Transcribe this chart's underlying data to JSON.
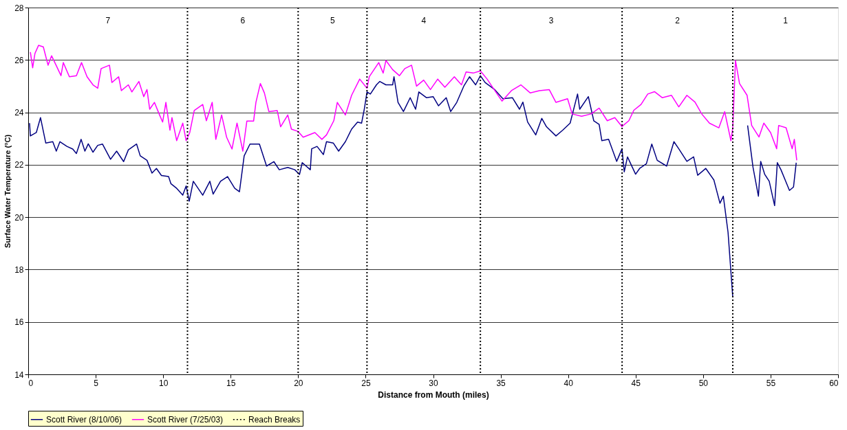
{
  "chart_data": {
    "type": "line",
    "xlabel": "Distance from Mouth (miles)",
    "ylabel": "Surface Water Temperature (°C)",
    "xlim": [
      0,
      60
    ],
    "xticks": [
      0,
      5,
      10,
      15,
      20,
      25,
      30,
      35,
      40,
      45,
      50,
      55,
      60
    ],
    "ylim": [
      14,
      28
    ],
    "yticks": [
      14,
      16,
      18,
      20,
      22,
      24,
      26,
      28
    ],
    "grid": "y",
    "legend": "bottom",
    "line_style": "solid",
    "marker": "none",
    "series": [
      {
        "name": "Scott River (8/10/06)",
        "color": "#000080",
        "x": [
          0.1,
          0.16,
          0.6,
          0.91,
          1.3,
          1.82,
          2.08,
          2.35,
          2.87,
          3.3,
          3.57,
          3.92,
          4.2,
          4.45,
          4.8,
          5.15,
          5.5,
          6.1,
          6.55,
          7.07,
          7.42,
          8.03,
          8.3,
          8.8,
          9.17,
          9.5,
          9.87,
          10.4,
          10.57,
          11.0,
          11.45,
          11.7,
          11.93,
          12.23,
          12.93,
          13.46,
          13.7,
          14.25,
          14.77,
          15.3,
          15.65,
          16.0,
          16.43,
          17.13,
          17.66,
          18.2,
          18.6,
          19.23,
          19.75,
          20.1,
          20.3,
          20.9,
          21.0,
          21.4,
          21.87,
          22.1,
          22.6,
          23.0,
          23.5,
          23.96,
          24.4,
          24.7,
          24.9,
          25.1,
          25.35,
          25.8,
          26.05,
          26.5,
          27.0,
          27.1,
          27.4,
          27.8,
          28.3,
          28.7,
          28.94,
          29.5,
          30.0,
          30.4,
          30.97,
          31.3,
          31.75,
          32.27,
          32.7,
          33.15,
          33.5,
          33.85,
          34.56,
          35.17,
          35.87,
          36.4,
          36.65,
          37.0,
          37.6,
          38.05,
          38.4,
          39.1,
          39.6,
          40.15,
          40.7,
          40.86,
          41.5,
          41.9,
          42.3,
          42.5,
          43.0,
          43.6,
          43.99,
          44.16,
          44.4,
          45.0,
          45.3,
          45.8,
          46.2,
          46.6,
          47.3,
          47.84,
          48.2,
          48.8,
          49.3,
          49.6,
          50.2,
          50.8,
          51.25,
          51.5,
          51.85,
          52.2,
          52.7,
          53.3,
          53.7,
          54.1,
          54.27,
          54.56,
          54.9,
          55.3,
          55.5,
          55.77,
          56.4,
          56.7,
          56.9
        ],
        "values": [
          23.59,
          23.1,
          23.23,
          23.8,
          22.83,
          22.88,
          22.52,
          22.88,
          22.7,
          22.6,
          22.43,
          22.97,
          22.52,
          22.8,
          22.48,
          22.74,
          22.79,
          22.21,
          22.52,
          22.12,
          22.57,
          22.79,
          22.34,
          22.17,
          21.68,
          21.86,
          21.59,
          21.55,
          21.28,
          21.1,
          20.84,
          21.19,
          20.61,
          21.37,
          20.84,
          21.37,
          20.88,
          21.37,
          21.55,
          21.1,
          20.97,
          22.34,
          22.79,
          22.79,
          21.95,
          22.12,
          21.81,
          21.9,
          21.81,
          21.63,
          22.08,
          21.81,
          22.61,
          22.7,
          22.39,
          22.88,
          22.83,
          22.52,
          22.88,
          23.36,
          23.63,
          23.59,
          24.12,
          24.78,
          24.7,
          25.05,
          25.18,
          25.05,
          25.05,
          25.36,
          24.38,
          24.03,
          24.56,
          24.12,
          24.78,
          24.56,
          24.6,
          24.25,
          24.56,
          24.03,
          24.38,
          25.0,
          25.36,
          25.05,
          25.4,
          25.14,
          24.87,
          24.52,
          24.56,
          24.12,
          24.39,
          23.63,
          23.14,
          23.77,
          23.45,
          23.1,
          23.32,
          23.59,
          24.7,
          24.12,
          24.6,
          23.68,
          23.54,
          22.92,
          22.97,
          22.13,
          22.61,
          21.73,
          22.3,
          21.64,
          21.86,
          22.04,
          22.79,
          22.17,
          21.95,
          22.88,
          22.61,
          22.13,
          22.3,
          21.6,
          21.86,
          21.42,
          20.53,
          20.8,
          19.42,
          16.94,
          null,
          23.5,
          21.9,
          20.8,
          22.13,
          21.64,
          21.37,
          20.44,
          22.08,
          21.81,
          21.02,
          21.15,
          22.08
        ]
      },
      {
        "name": "Scott River (7/25/03)",
        "color": "#ff00ff",
        "x": [
          0.16,
          0.33,
          0.5,
          0.77,
          1.12,
          1.47,
          1.73,
          2.1,
          2.43,
          2.6,
          3.05,
          3.57,
          3.95,
          4.36,
          4.8,
          5.15,
          5.4,
          6.02,
          6.2,
          6.7,
          6.9,
          7.42,
          7.68,
          8.2,
          8.56,
          8.8,
          9.0,
          9.35,
          9.7,
          9.96,
          10.2,
          10.5,
          10.65,
          11.0,
          11.45,
          11.7,
          11.97,
          12.3,
          12.93,
          13.2,
          13.63,
          13.9,
          14.33,
          14.7,
          15.1,
          15.47,
          15.9,
          16.2,
          16.7,
          16.87,
          17.2,
          17.5,
          17.83,
          18.45,
          18.7,
          19.23,
          19.5,
          20.0,
          20.37,
          21.24,
          21.76,
          22.1,
          22.64,
          22.9,
          23.5,
          23.96,
          24.56,
          25.1,
          25.27,
          25.97,
          26.3,
          26.5,
          27.0,
          27.5,
          27.9,
          28.4,
          28.77,
          29.3,
          29.8,
          30.34,
          30.87,
          31.57,
          32.1,
          32.44,
          32.97,
          33.5,
          34.0,
          34.4,
          35.1,
          35.8,
          36.5,
          37.2,
          37.87,
          38.6,
          39.1,
          39.96,
          40.3,
          41.0,
          41.7,
          42.3,
          42.9,
          43.46,
          43.99,
          44.5,
          44.87,
          45.4,
          45.9,
          46.4,
          46.97,
          47.66,
          48.2,
          48.8,
          49.4,
          49.9,
          50.47,
          51.17,
          51.6,
          52.06,
          52.2,
          52.4,
          52.7,
          53.26,
          53.6,
          54.14,
          54.5,
          55.0,
          55.45,
          55.6,
          56.15,
          56.6,
          56.76,
          56.94
        ],
        "values": [
          26.3,
          25.7,
          26.25,
          26.56,
          26.5,
          25.8,
          26.16,
          25.76,
          25.4,
          25.9,
          25.36,
          25.4,
          25.9,
          25.36,
          25.05,
          24.92,
          25.67,
          25.8,
          25.14,
          25.36,
          24.83,
          25.05,
          24.78,
          25.18,
          24.6,
          24.87,
          24.12,
          24.38,
          23.94,
          23.63,
          24.38,
          23.32,
          23.8,
          22.92,
          23.59,
          22.92,
          23.23,
          24.07,
          24.3,
          23.68,
          24.38,
          22.97,
          23.9,
          23.05,
          22.6,
          23.59,
          22.52,
          23.67,
          23.67,
          24.38,
          25.1,
          24.74,
          24.03,
          24.07,
          23.45,
          23.9,
          23.36,
          23.27,
          23.05,
          23.23,
          22.97,
          23.14,
          23.68,
          24.38,
          23.9,
          24.65,
          25.27,
          24.92,
          25.36,
          25.9,
          25.5,
          25.98,
          25.63,
          25.4,
          25.67,
          25.8,
          25.0,
          25.23,
          24.87,
          25.27,
          24.96,
          25.36,
          25.05,
          25.54,
          25.5,
          25.58,
          25.27,
          24.96,
          24.43,
          24.83,
          25.05,
          24.74,
          24.83,
          24.87,
          24.38,
          24.52,
          23.94,
          23.85,
          23.94,
          24.16,
          23.68,
          23.8,
          23.46,
          23.68,
          24.08,
          24.3,
          24.7,
          24.79,
          24.56,
          24.65,
          24.21,
          24.65,
          24.39,
          23.94,
          23.59,
          23.41,
          24.03,
          22.92,
          23.41,
          25.98,
          25.1,
          24.65,
          23.5,
          23.06,
          23.59,
          23.23,
          22.61,
          23.5,
          23.41,
          22.61,
          22.97,
          22.17
        ]
      }
    ],
    "ref_lines": [
      {
        "axis": "x",
        "value": 11.8,
        "label": "Reach Breaks",
        "color": "#000000",
        "line_style": "dotted"
      },
      {
        "axis": "x",
        "value": 20.0,
        "color": "#000000",
        "line_style": "dotted"
      },
      {
        "axis": "x",
        "value": 25.1,
        "color": "#000000",
        "line_style": "dotted"
      },
      {
        "axis": "x",
        "value": 33.5,
        "color": "#000000",
        "line_style": "dotted"
      },
      {
        "axis": "x",
        "value": 44.0,
        "color": "#000000",
        "line_style": "dotted"
      },
      {
        "axis": "x",
        "value": 52.2,
        "color": "#000000",
        "line_style": "dotted"
      }
    ],
    "annotations": [
      "7",
      "6",
      "5",
      "4",
      "3",
      "2",
      "1"
    ]
  }
}
